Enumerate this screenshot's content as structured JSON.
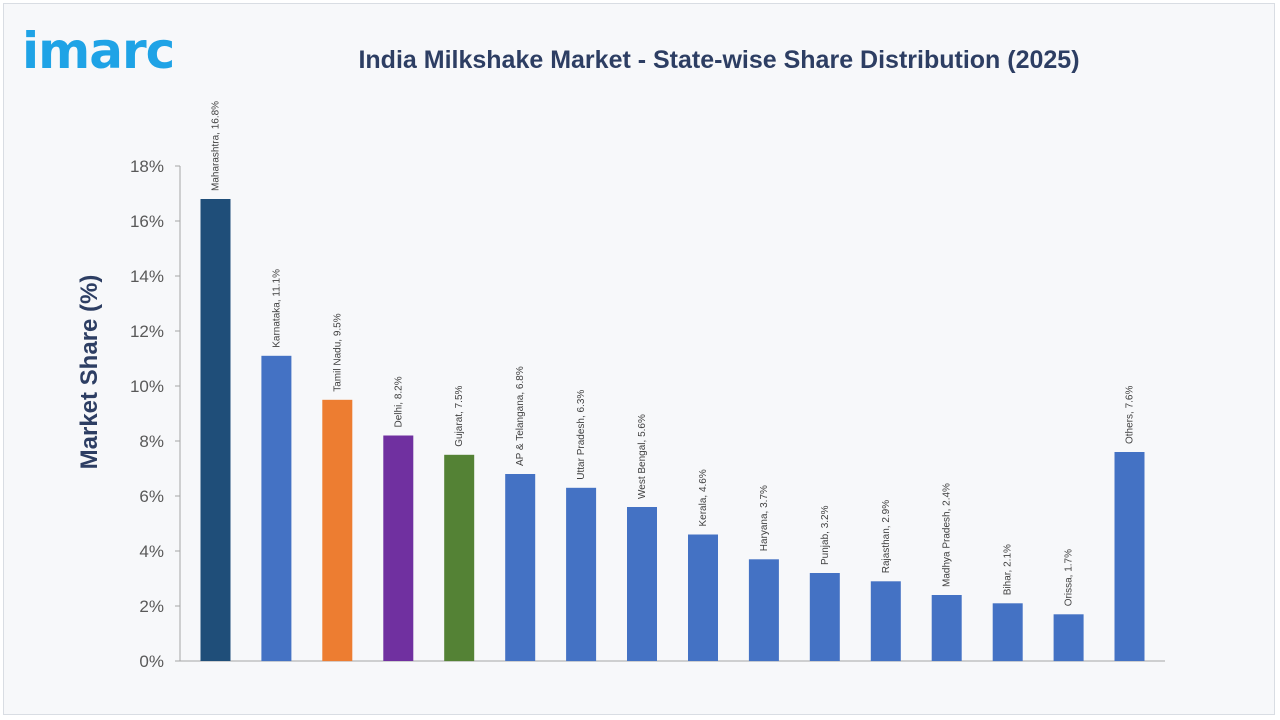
{
  "brand": {
    "logo_text": "imarc",
    "logo_color": "#1fa3e6"
  },
  "chart_data": {
    "type": "bar",
    "title": "India Milkshake Market - State-wise Share Distribution (2025)",
    "xlabel": "",
    "ylabel": "Market Share (%)",
    "ylim": [
      0,
      18
    ],
    "ytick_labels": [
      "0%",
      "2%",
      "4%",
      "6%",
      "8%",
      "10%",
      "12%",
      "14%",
      "16%",
      "18%"
    ],
    "grid": false,
    "legend": "none",
    "categories": [
      "Maharashtra",
      "Karnataka",
      "Tamil Nadu",
      "Delhi",
      "Gujarat",
      "AP & Telangana",
      "Uttar Pradesh",
      "West Bengal",
      "Kerala",
      "Haryana",
      "Punjab",
      "Rajasthan",
      "Madhya Pradesh",
      "Bihar",
      "Orissa",
      "Others"
    ],
    "values": [
      16.8,
      11.1,
      9.5,
      8.2,
      7.5,
      6.8,
      6.3,
      5.6,
      4.6,
      3.7,
      3.2,
      2.9,
      2.4,
      2.1,
      1.7,
      7.6
    ],
    "data_labels": [
      "Maharashtra, 16.8%",
      "Karnataka, 11.1%",
      "Tamil Nadu, 9.5%",
      "Delhi, 8.2%",
      "Gujarat, 7.5%",
      "AP & Telangana, 6.8%",
      "Uttar Pradesh, 6.3%",
      "West Bengal, 5.6%",
      "Kerala, 4.6%",
      "Haryana, 3.7%",
      "Punjab, 3.2%",
      "Rajasthan, 2.9%",
      "Madhya Pradesh, 2.4%",
      "Bihar, 2.1%",
      "Orissa, 1.7%",
      "Others, 7.6%"
    ],
    "colors": [
      "#1f4e79",
      "#4472c4",
      "#ed7d31",
      "#7030a0",
      "#548235",
      "#4472c4",
      "#4472c4",
      "#4472c4",
      "#4472c4",
      "#4472c4",
      "#4472c4",
      "#4472c4",
      "#4472c4",
      "#4472c4",
      "#4472c4",
      "#4472c4"
    ]
  }
}
